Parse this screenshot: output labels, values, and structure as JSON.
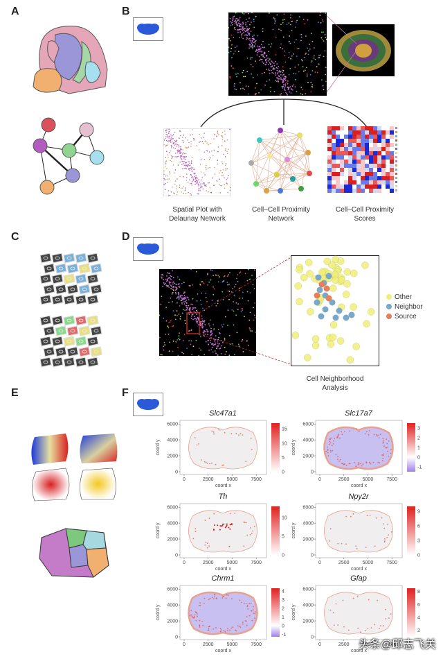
{
  "panels": {
    "A": "A",
    "B": "B",
    "C": "C",
    "D": "D",
    "E": "E",
    "F": "F"
  },
  "captions": {
    "delaunay": "Spatial Plot with\nDelaunay Network",
    "proximity_network": "Cell–Cell Proximity\nNetwork",
    "proximity_scores": "Cell–Cell Proximity\nScores",
    "neighborhood": "Cell Neighborhood\nAnalysis"
  },
  "legend_d": [
    {
      "label": "Other",
      "color": "#f0ef7a"
    },
    {
      "label": "Neighbor",
      "color": "#7aa8c8"
    },
    {
      "label": "Source",
      "color": "#e4805a"
    }
  ],
  "spatial_plots": [
    {
      "gene": "Slc47a1",
      "colorbar_ticks": [
        "15",
        "10",
        "5",
        "0"
      ],
      "min": 0,
      "max": 17,
      "diverging": false
    },
    {
      "gene": "Slc17a7",
      "colorbar_ticks": [
        "3",
        "2",
        "1",
        "0",
        "-1"
      ],
      "min": -1.5,
      "max": 3.5,
      "diverging": true
    },
    {
      "gene": "Th",
      "colorbar_ticks": [
        "10",
        "5",
        "0"
      ],
      "min": 0,
      "max": 13,
      "diverging": false
    },
    {
      "gene": "Npy2r",
      "colorbar_ticks": [
        "9",
        "6",
        "3",
        "0"
      ],
      "min": 0,
      "max": 10,
      "diverging": false
    },
    {
      "gene": "Chrm1",
      "colorbar_ticks": [
        "4",
        "3",
        "2",
        "1",
        "0",
        "-1"
      ],
      "min": -1.3,
      "max": 4.3,
      "diverging": true
    },
    {
      "gene": "Gfap",
      "colorbar_ticks": [
        "8",
        "6",
        "4",
        "2"
      ],
      "min": 1,
      "max": 8.5,
      "diverging": false
    }
  ],
  "axis": {
    "xlabel": "coord x",
    "ylabel": "coord y",
    "x_ticks": [
      "0",
      "2500",
      "5000",
      "7500"
    ],
    "y_ticks": [
      "0",
      "2000",
      "4000",
      "6000"
    ]
  },
  "watermark": "头条@邱志飞关",
  "colors": {
    "bg_dark": "#000000",
    "accent_red": "#e23a2a",
    "brain_blue": "#2a5ad8"
  }
}
